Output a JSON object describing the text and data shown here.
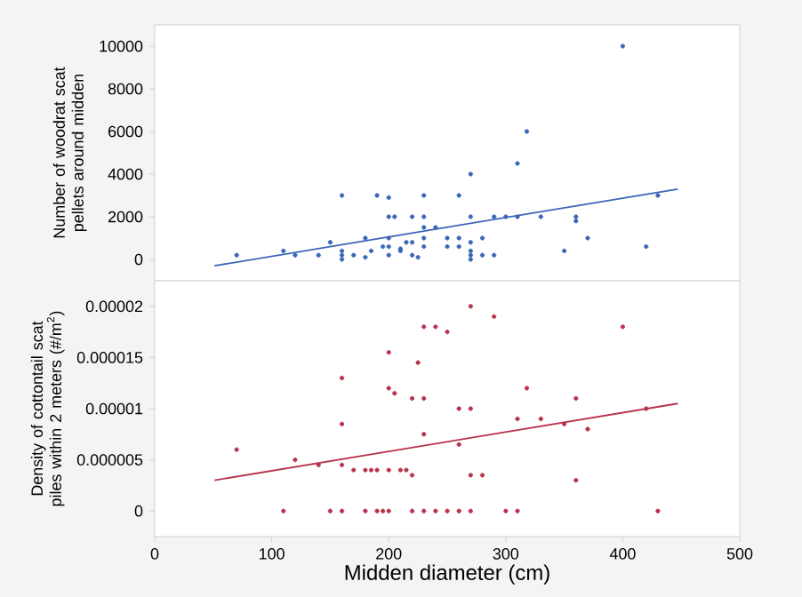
{
  "chart_data": [
    {
      "type": "scatter",
      "ylabel": "Number of woodrat scat pellets around midden",
      "xlim": [
        0,
        500
      ],
      "ylim": [
        -1000,
        11000
      ],
      "yticks": [
        0,
        2000,
        4000,
        6000,
        8000,
        10000
      ],
      "tick_labels": "y",
      "grid": false,
      "series": [
        {
          "color": "#3a66b8",
          "marker": "circle",
          "x": [
            70,
            110,
            120,
            140,
            150,
            160,
            160,
            160,
            160,
            170,
            180,
            180,
            185,
            190,
            195,
            200,
            200,
            200,
            200,
            200,
            205,
            210,
            210,
            215,
            220,
            220,
            220,
            225,
            230,
            230,
            230,
            230,
            230,
            240,
            250,
            250,
            260,
            260,
            260,
            270,
            270,
            270,
            270,
            270,
            270,
            280,
            280,
            290,
            290,
            300,
            310,
            310,
            318,
            330,
            350,
            360,
            360,
            370,
            400,
            420,
            430
          ],
          "values": [
            200,
            400,
            200,
            200,
            800,
            3000,
            400,
            200,
            0,
            200,
            1000,
            100,
            400,
            3000,
            600,
            2900,
            2000,
            1000,
            600,
            200,
            2000,
            500,
            400,
            800,
            2000,
            800,
            200,
            100,
            3000,
            2000,
            1500,
            1000,
            600,
            1500,
            1000,
            600,
            3000,
            1000,
            600,
            4000,
            2000,
            800,
            400,
            200,
            0,
            1000,
            200,
            2000,
            200,
            2000,
            4500,
            2000,
            6000,
            2000,
            400,
            2000,
            1800,
            1000,
            10000,
            600,
            3000
          ]
        },
        {
          "type": "line",
          "color": "#3a66b8",
          "marker": "none",
          "x": [
            51,
            447
          ],
          "values": [
            -300,
            3300
          ]
        }
      ]
    },
    {
      "type": "scatter",
      "xlabel": "Midden diameter (cm)",
      "ylabel": "Density of cottontail scat piles within 2 meters (#/m$^{2}$)",
      "xlim": [
        0,
        500
      ],
      "xticks": [
        0,
        100,
        200,
        300,
        400,
        500
      ],
      "ylim": [
        -2.5e-06,
        2.25e-05
      ],
      "yticks": [
        0,
        {
          "value": 5e-06,
          "label": "0.000005"
        },
        {
          "value": 1e-05,
          "label": "0.00001"
        },
        {
          "value": 1.5e-05,
          "label": "0.000015"
        },
        {
          "value": 2e-05,
          "label": "0.00002"
        }
      ],
      "grid": false,
      "series": [
        {
          "color": "#b8324a",
          "marker": "circle",
          "x": [
            70,
            110,
            120,
            140,
            150,
            160,
            160,
            160,
            160,
            170,
            180,
            180,
            185,
            190,
            190,
            195,
            200,
            200,
            200,
            200,
            205,
            210,
            215,
            220,
            220,
            220,
            225,
            230,
            230,
            230,
            230,
            240,
            240,
            250,
            250,
            260,
            260,
            260,
            270,
            270,
            270,
            270,
            280,
            290,
            300,
            310,
            310,
            318,
            330,
            350,
            360,
            360,
            370,
            400,
            420,
            430
          ],
          "values": [
            6e-06,
            0,
            5e-06,
            4.5e-06,
            0,
            1.3e-05,
            8.5e-06,
            4.5e-06,
            0,
            4e-06,
            4e-06,
            0,
            4e-06,
            4e-06,
            0,
            0,
            1.55e-05,
            1.2e-05,
            4e-06,
            0,
            1.15e-05,
            4e-06,
            4e-06,
            1.1e-05,
            3.5e-06,
            0,
            1.45e-05,
            1.8e-05,
            1.1e-05,
            7.5e-06,
            0,
            1.8e-05,
            0,
            1.75e-05,
            0,
            1e-05,
            6.5e-06,
            0,
            2e-05,
            1e-05,
            3.5e-06,
            0,
            3.5e-06,
            1.9e-05,
            0,
            9e-06,
            0,
            1.2e-05,
            9e-06,
            8.5e-06,
            1.1e-05,
            3e-06,
            8e-06,
            1.8e-05,
            1e-05,
            0
          ]
        },
        {
          "type": "line",
          "color": "#b8324a",
          "marker": "none",
          "x": [
            51,
            447
          ],
          "values": [
            3e-06,
            1.05e-05
          ]
        }
      ]
    }
  ]
}
